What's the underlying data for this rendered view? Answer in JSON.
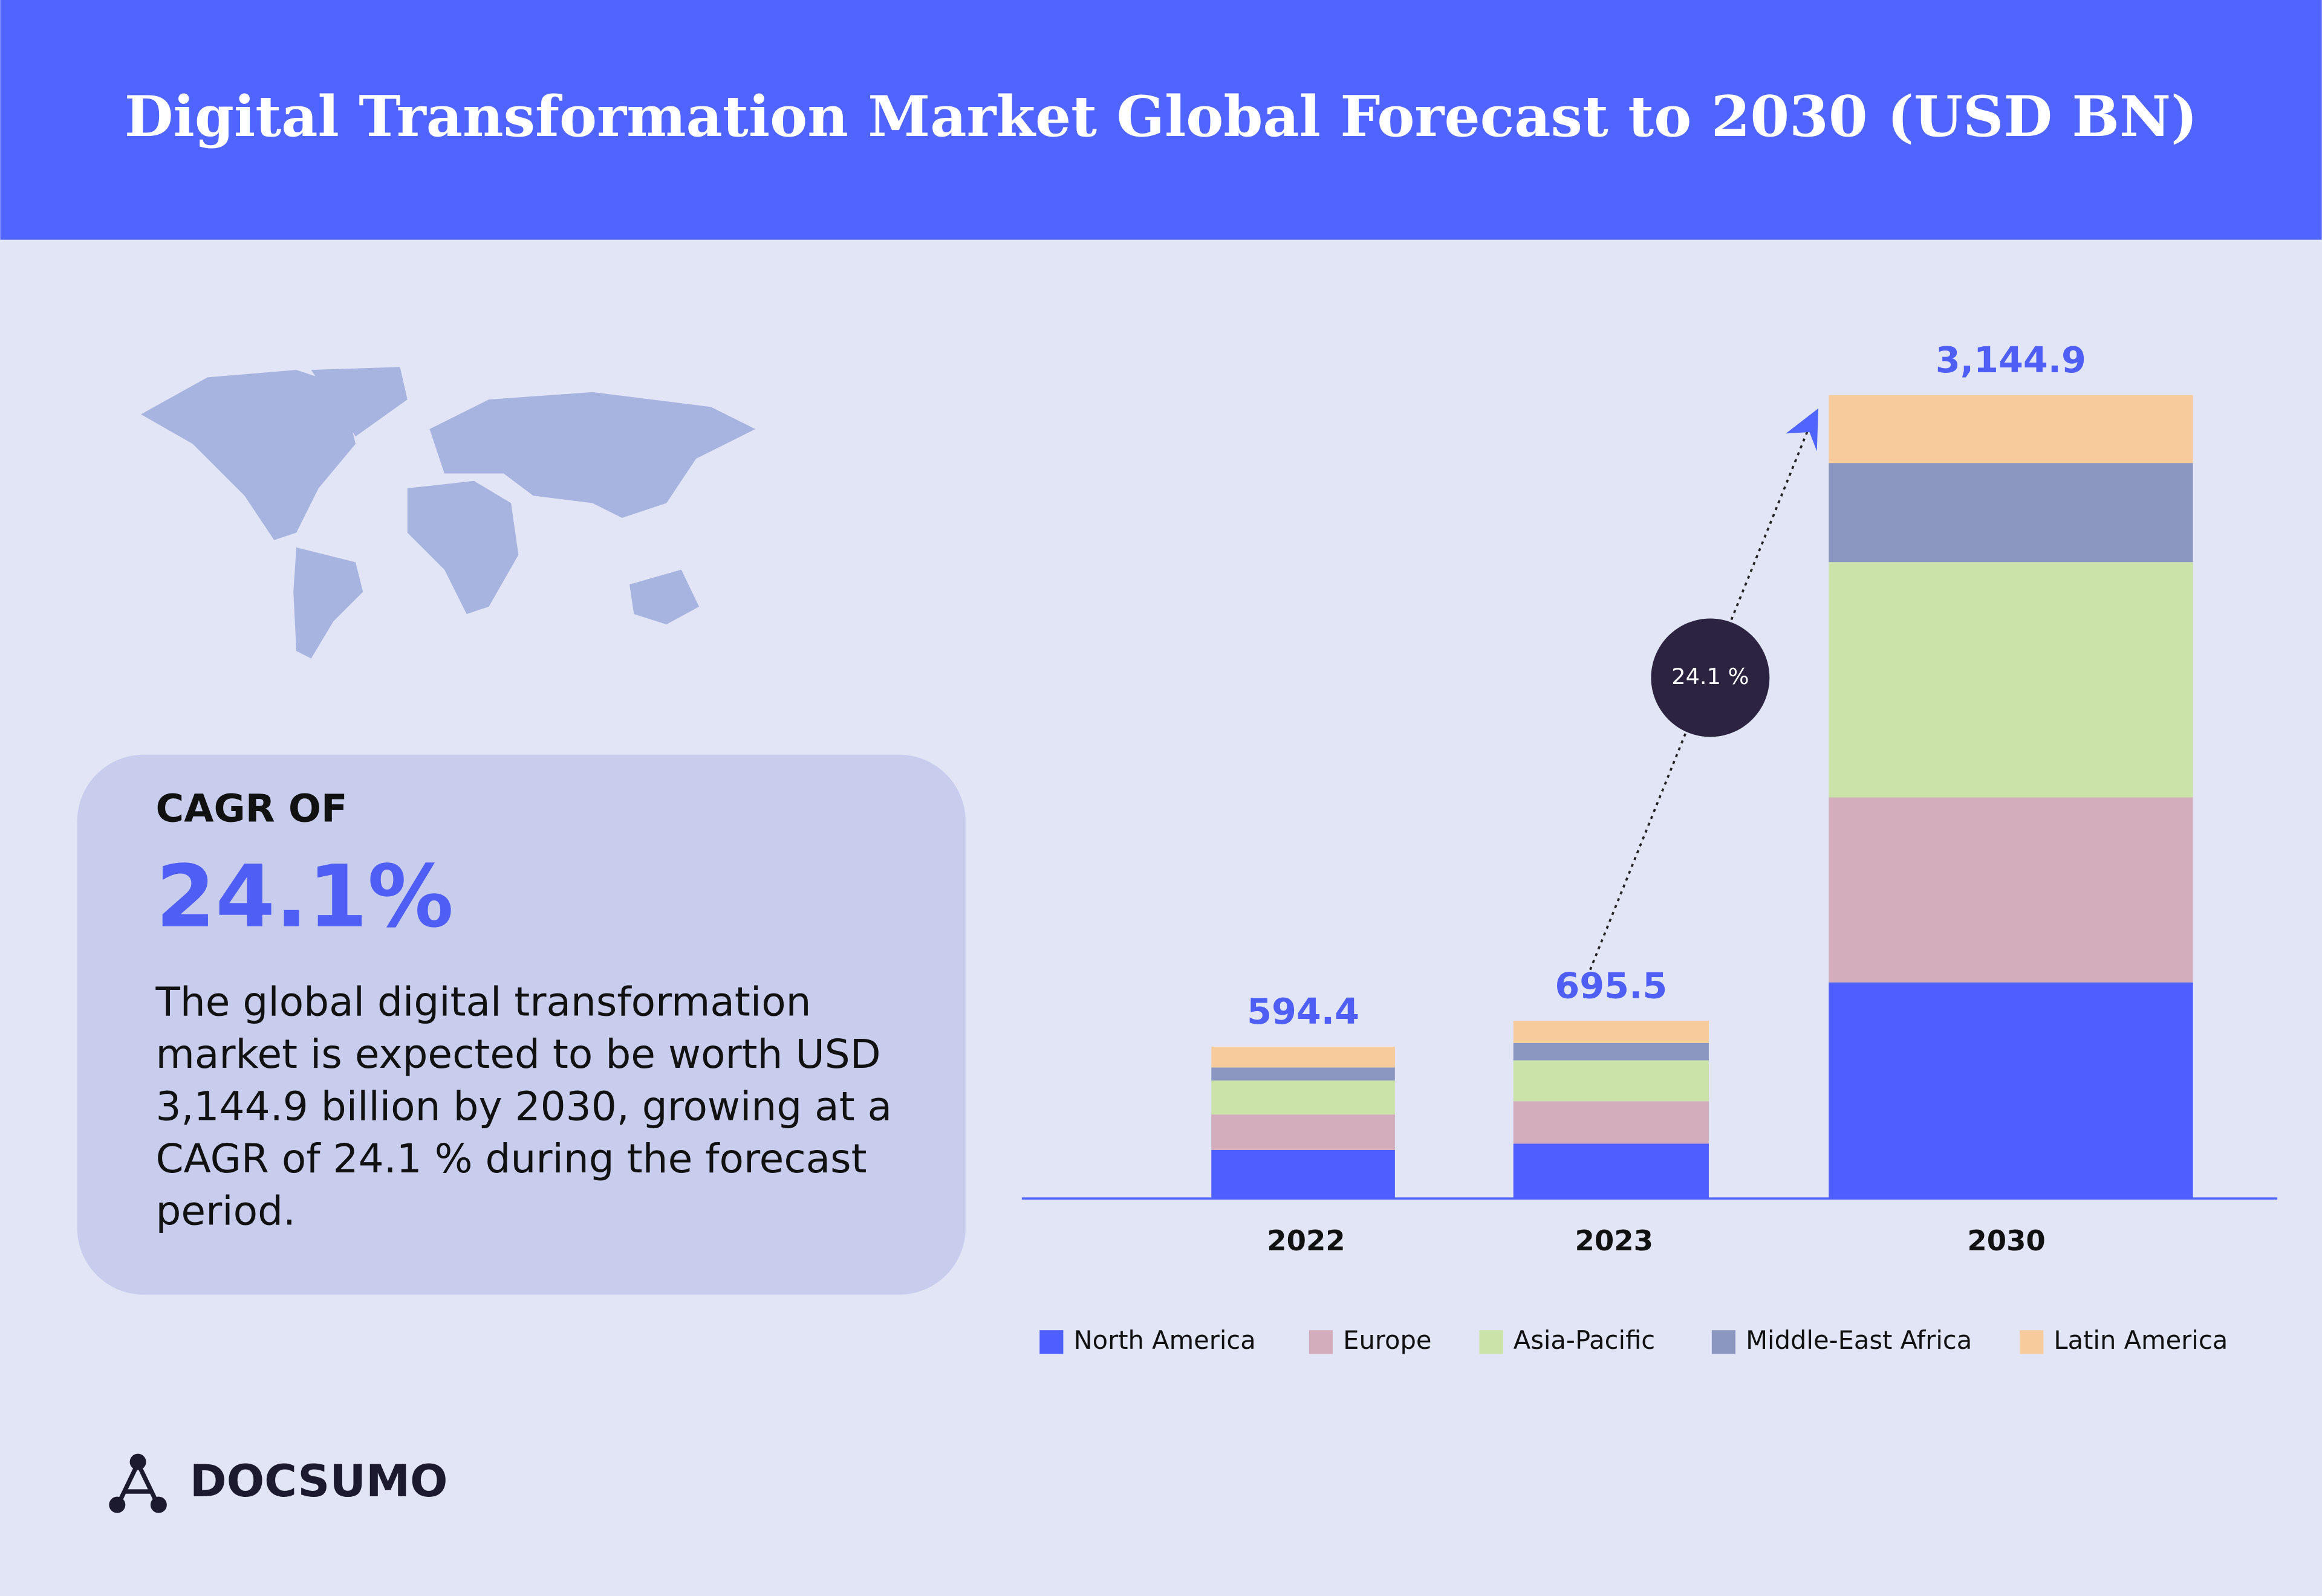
{
  "chart_data": {
    "type": "stacked-bar",
    "title": "Digital Transformation Market Global Forecast to 2030 (USD BN)",
    "categories": [
      "2022",
      "2023",
      "2030"
    ],
    "series": [
      {
        "name": "North America",
        "color": "#4f5fff",
        "values": [
          190,
          215,
          846
        ]
      },
      {
        "name": "Europe",
        "color": "#d3adbb",
        "values": [
          139,
          166,
          724
        ]
      },
      {
        "name": "Asia-Pacific",
        "color": "#cbe2a8",
        "values": [
          133,
          160,
          921
        ]
      },
      {
        "name": "Middle-East Africa",
        "color": "#8b97c0",
        "values": [
          51,
          68,
          388
        ]
      },
      {
        "name": "Latin America",
        "color": "#f8cb9c",
        "values": [
          81.4,
          86.5,
          265.9
        ]
      }
    ],
    "totals": [
      594.4,
      695.5,
      3144.9
    ],
    "total_labels": [
      "594.4",
      "695.5",
      "3,144.9"
    ],
    "cagr_badge": "24.1 %",
    "card": {
      "heading": "CAGR  OF",
      "value": "24.1%",
      "description_lines": [
        "The global digital transformation",
        "market is expected to be worth USD",
        "3,144.9 billion by 2030, growing at a",
        "CAGR of 24.1 % during the forecast",
        "period."
      ]
    },
    "brand": "DOCSUMO"
  }
}
